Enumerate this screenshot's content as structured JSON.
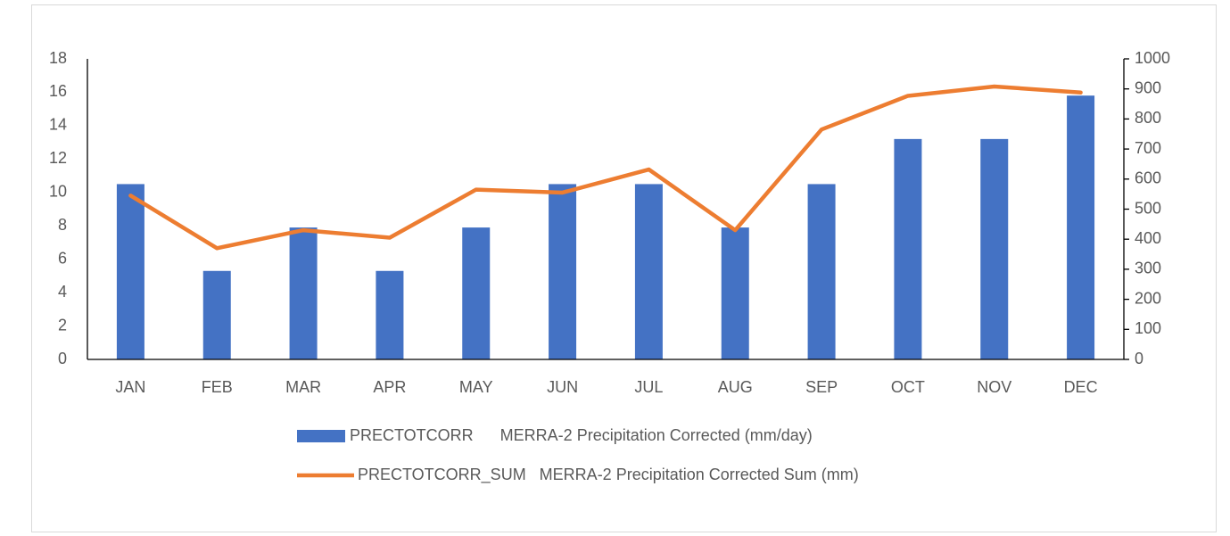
{
  "chart_data": {
    "type": "bar-line",
    "categories": [
      "JAN",
      "FEB",
      "MAR",
      "APR",
      "MAY",
      "JUN",
      "JUL",
      "AUG",
      "SEP",
      "OCT",
      "NOV",
      "DEC"
    ],
    "series": [
      {
        "name": "PRECTOTCORR      MERRA-2 Precipitation Corrected (mm/day)",
        "type": "bar",
        "color": "#4472c4",
        "values": [
          10.5,
          5.3,
          7.9,
          5.3,
          7.9,
          10.5,
          10.5,
          7.9,
          10.5,
          13.2,
          13.2,
          15.8
        ]
      },
      {
        "name": "PRECTOTCORR_SUM   MERRA-2 Precipitation Corrected Sum (mm)",
        "type": "line",
        "color": "#ed7d31",
        "axis": "y2",
        "values": [
          545,
          370,
          430,
          405,
          565,
          555,
          632,
          430,
          765,
          877,
          908,
          888
        ]
      }
    ],
    "ylim": [
      0,
      18
    ],
    "yticks": [
      0,
      2,
      4,
      6,
      8,
      10,
      12,
      14,
      16,
      18
    ],
    "y2lim": [
      0,
      1000
    ],
    "y2ticks": [
      0,
      100,
      200,
      300,
      400,
      500,
      600,
      700,
      800,
      900,
      1000
    ],
    "grid": false,
    "legend": "bottom"
  }
}
